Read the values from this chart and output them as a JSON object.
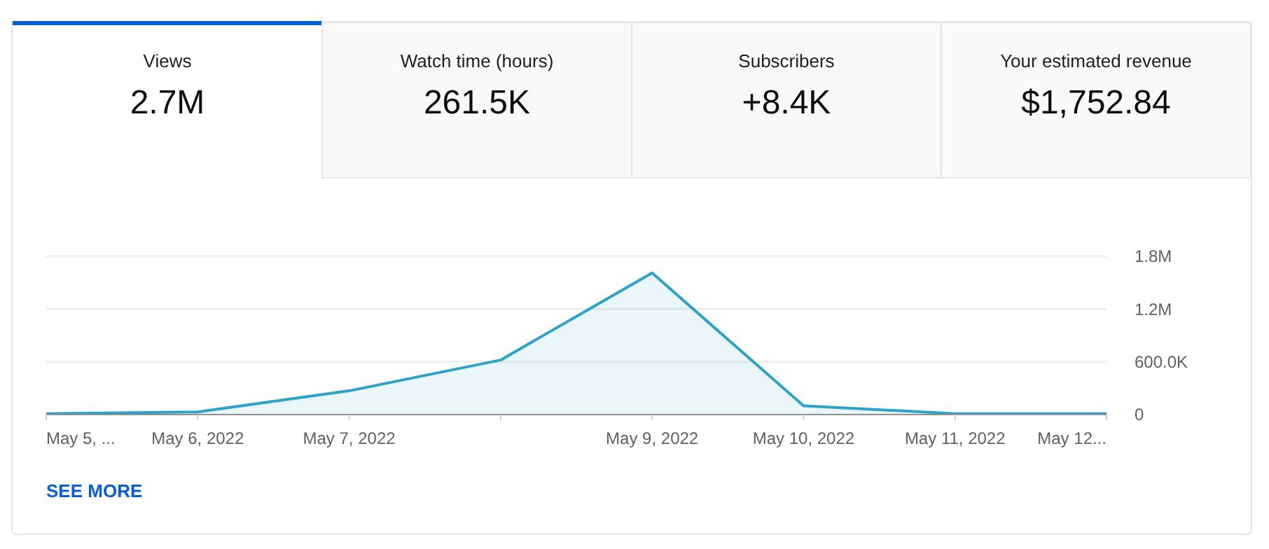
{
  "chart_data": [
    {
      "type": "other",
      "annotations": [
        "Views",
        "2.7M",
        "Watch time (hours)",
        "261.5K",
        "Subscribers",
        "+8.4K",
        "Your estimated revenue",
        "$1,752.84"
      ]
    },
    {
      "type": "area",
      "categories": [
        "May 5, ...",
        "May 6, 2022",
        "May 7, 2022",
        null,
        "May 9, 2022",
        "May 10, 2022",
        "May 11, 2022",
        "May 12..."
      ],
      "series": [
        {
          "color": "#2ea3c9",
          "values": [
            10000,
            30000,
            270000,
            620000,
            1610000,
            100000,
            10000,
            10000
          ]
        }
      ],
      "ylim": [
        0,
        1800000
      ],
      "yticks": [
        0,
        {
          "value": 600000,
          "label": "600.0K"
        },
        {
          "value": 1200000,
          "label": "1.2M"
        },
        {
          "value": 1800000,
          "label": "1.8M"
        }
      ],
      "grid": "y",
      "annotations": [
        "SEE MORE"
      ]
    }
  ]
}
